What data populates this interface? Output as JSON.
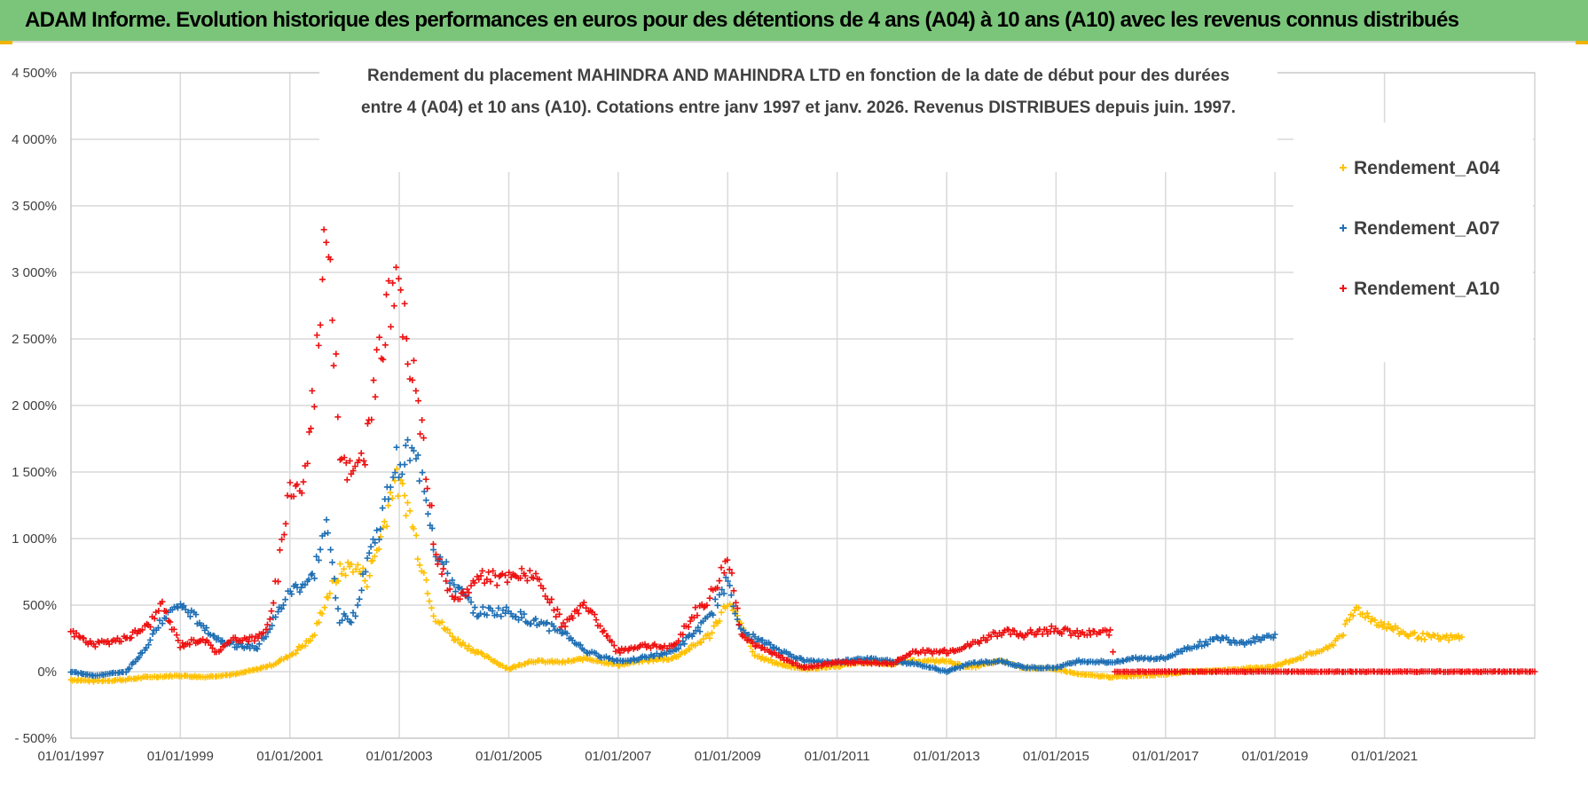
{
  "header": {
    "title": "ADAM Informe. Evolution historique des performances en euros pour des détentions de 4 ans (A04) à 10 ans (A10) avec les revenus connus distribués"
  },
  "colors": {
    "header_bg": "#7ac57a",
    "A04": "#ffc000",
    "A07": "#1f6fb4",
    "A10": "#ee1111",
    "grid": "#d9d9d9"
  },
  "chart_data": {
    "type": "scatter",
    "title_lines": [
      "Rendement du placement MAHINDRA AND MAHINDRA LTD en fonction de la date de début pour des durées",
      "entre 4 (A04) et 10 ans (A10).  Cotations entre janv 1997 et janv. 2026. Revenus DISTRIBUES depuis juin. 1997."
    ],
    "xlabel": "",
    "ylabel": "",
    "ylim": [
      -500,
      4500
    ],
    "xlim": [
      "1997-01-01",
      "2023-10-01"
    ],
    "x_ticks": [
      "01/01/1997",
      "01/01/1999",
      "01/01/2001",
      "01/01/2003",
      "01/01/2005",
      "01/01/2007",
      "01/01/2009",
      "01/01/2011",
      "01/01/2013",
      "01/01/2015",
      "01/01/2017",
      "01/01/2019",
      "01/01/2021"
    ],
    "y_ticks": [
      "- 500%",
      "0%",
      "500%",
      "1 000%",
      "1 500%",
      "2 000%",
      "2 500%",
      "3 000%",
      "3 500%",
      "4 000%",
      "4 500%"
    ],
    "grid": true,
    "legend_position": "right",
    "marker": "+",
    "series": [
      {
        "name": "Rendement_A04",
        "color": "#ffc000",
        "points": [
          [
            "1997-01-01",
            -60
          ],
          [
            "1997-06-01",
            -70
          ],
          [
            "1998-01-01",
            -60
          ],
          [
            "1998-06-01",
            -40
          ],
          [
            "1999-01-01",
            -30
          ],
          [
            "1999-06-01",
            -40
          ],
          [
            "2000-01-01",
            -20
          ],
          [
            "2000-06-01",
            20
          ],
          [
            "2000-09-01",
            50
          ],
          [
            "2001-01-01",
            120
          ],
          [
            "2001-06-01",
            250
          ],
          [
            "2001-09-01",
            550
          ],
          [
            "2001-12-01",
            750
          ],
          [
            "2002-03-01",
            800
          ],
          [
            "2002-06-01",
            700
          ],
          [
            "2002-09-01",
            1000
          ],
          [
            "2002-12-01",
            1450
          ],
          [
            "2003-03-01",
            1250
          ],
          [
            "2003-06-01",
            800
          ],
          [
            "2003-09-01",
            400
          ],
          [
            "2004-01-01",
            250
          ],
          [
            "2004-06-01",
            150
          ],
          [
            "2005-01-01",
            20
          ],
          [
            "2005-06-01",
            80
          ],
          [
            "2006-01-01",
            70
          ],
          [
            "2006-06-01",
            100
          ],
          [
            "2007-01-01",
            50
          ],
          [
            "2007-06-01",
            80
          ],
          [
            "2008-01-01",
            100
          ],
          [
            "2008-06-01",
            200
          ],
          [
            "2008-09-01",
            280
          ],
          [
            "2009-01-01",
            520
          ],
          [
            "2009-04-01",
            350
          ],
          [
            "2009-07-01",
            120
          ],
          [
            "2010-01-01",
            50
          ],
          [
            "2010-06-01",
            20
          ],
          [
            "2011-01-01",
            40
          ],
          [
            "2011-06-01",
            70
          ],
          [
            "2012-01-01",
            60
          ],
          [
            "2012-06-01",
            80
          ],
          [
            "2013-01-01",
            80
          ],
          [
            "2013-06-01",
            30
          ],
          [
            "2014-01-01",
            80
          ],
          [
            "2014-06-01",
            30
          ],
          [
            "2015-01-01",
            20
          ],
          [
            "2015-06-01",
            -20
          ],
          [
            "2016-01-01",
            -40
          ],
          [
            "2016-06-01",
            -30
          ],
          [
            "2017-01-01",
            -20
          ],
          [
            "2017-06-01",
            0
          ],
          [
            "2018-01-01",
            10
          ],
          [
            "2018-06-01",
            20
          ],
          [
            "2019-01-01",
            40
          ],
          [
            "2019-06-01",
            100
          ],
          [
            "2020-01-01",
            180
          ],
          [
            "2020-04-01",
            300
          ],
          [
            "2020-07-01",
            480
          ],
          [
            "2020-10-01",
            400
          ],
          [
            "2021-01-01",
            350
          ],
          [
            "2021-06-01",
            280
          ],
          [
            "2022-01-01",
            250
          ],
          [
            "2022-06-01",
            260
          ]
        ]
      },
      {
        "name": "Rendement_A07",
        "color": "#1f6fb4",
        "points": [
          [
            "1997-01-01",
            0
          ],
          [
            "1997-06-01",
            -30
          ],
          [
            "1998-01-01",
            0
          ],
          [
            "1998-06-01",
            200
          ],
          [
            "1998-09-01",
            400
          ],
          [
            "1999-01-01",
            500
          ],
          [
            "1999-06-01",
            350
          ],
          [
            "1999-09-01",
            250
          ],
          [
            "2000-01-01",
            200
          ],
          [
            "2000-06-01",
            180
          ],
          [
            "2000-09-01",
            350
          ],
          [
            "2001-01-01",
            600
          ],
          [
            "2001-06-01",
            700
          ],
          [
            "2001-09-01",
            1100
          ],
          [
            "2001-12-01",
            400
          ],
          [
            "2002-03-01",
            400
          ],
          [
            "2002-06-01",
            850
          ],
          [
            "2002-09-01",
            1100
          ],
          [
            "2002-12-01",
            1550
          ],
          [
            "2003-03-01",
            1650
          ],
          [
            "2003-06-01",
            1500
          ],
          [
            "2003-09-01",
            900
          ],
          [
            "2004-01-01",
            650
          ],
          [
            "2004-06-01",
            450
          ],
          [
            "2005-01-01",
            450
          ],
          [
            "2005-06-01",
            380
          ],
          [
            "2006-01-01",
            300
          ],
          [
            "2006-06-01",
            150
          ],
          [
            "2007-01-01",
            80
          ],
          [
            "2007-06-01",
            100
          ],
          [
            "2008-01-01",
            150
          ],
          [
            "2008-06-01",
            300
          ],
          [
            "2008-09-01",
            400
          ],
          [
            "2009-01-01",
            700
          ],
          [
            "2009-04-01",
            300
          ],
          [
            "2009-07-01",
            250
          ],
          [
            "2010-01-01",
            150
          ],
          [
            "2010-06-01",
            80
          ],
          [
            "2011-01-01",
            70
          ],
          [
            "2011-06-01",
            100
          ],
          [
            "2012-01-01",
            80
          ],
          [
            "2012-06-01",
            60
          ],
          [
            "2013-01-01",
            0
          ],
          [
            "2013-06-01",
            60
          ],
          [
            "2014-01-01",
            80
          ],
          [
            "2014-06-01",
            30
          ],
          [
            "2015-01-01",
            30
          ],
          [
            "2015-06-01",
            80
          ],
          [
            "2016-01-01",
            70
          ],
          [
            "2016-06-01",
            100
          ],
          [
            "2017-01-01",
            100
          ],
          [
            "2017-06-01",
            180
          ],
          [
            "2018-01-01",
            250
          ],
          [
            "2018-06-01",
            220
          ],
          [
            "2019-01-01",
            280
          ]
        ]
      },
      {
        "name": "Rendement_A10",
        "color": "#ee1111",
        "points": [
          [
            "1997-01-01",
            300
          ],
          [
            "1997-06-01",
            200
          ],
          [
            "1998-01-01",
            250
          ],
          [
            "1998-06-01",
            350
          ],
          [
            "1998-09-01",
            500
          ],
          [
            "1999-01-01",
            200
          ],
          [
            "1999-06-01",
            250
          ],
          [
            "1999-09-01",
            150
          ],
          [
            "2000-01-01",
            250
          ],
          [
            "2000-06-01",
            250
          ],
          [
            "2000-09-01",
            400
          ],
          [
            "2001-01-01",
            1400
          ],
          [
            "2001-04-01",
            1400
          ],
          [
            "2001-06-01",
            2000
          ],
          [
            "2001-09-01",
            3400
          ],
          [
            "2001-12-01",
            1700
          ],
          [
            "2002-03-01",
            1450
          ],
          [
            "2002-06-01",
            1700
          ],
          [
            "2002-09-01",
            2500
          ],
          [
            "2002-12-01",
            2900
          ],
          [
            "2003-03-01",
            2450
          ],
          [
            "2003-06-01",
            1800
          ],
          [
            "2003-09-01",
            900
          ],
          [
            "2004-01-01",
            500
          ],
          [
            "2004-06-01",
            700
          ],
          [
            "2005-01-01",
            700
          ],
          [
            "2005-06-01",
            750
          ],
          [
            "2006-01-01",
            350
          ],
          [
            "2006-06-01",
            500
          ],
          [
            "2007-01-01",
            150
          ],
          [
            "2007-06-01",
            200
          ],
          [
            "2008-01-01",
            180
          ],
          [
            "2008-06-01",
            450
          ],
          [
            "2008-09-01",
            550
          ],
          [
            "2009-01-01",
            850
          ],
          [
            "2009-04-01",
            300
          ],
          [
            "2009-07-01",
            200
          ],
          [
            "2010-01-01",
            100
          ],
          [
            "2010-06-01",
            30
          ],
          [
            "2011-01-01",
            70
          ],
          [
            "2011-06-01",
            70
          ],
          [
            "2012-01-01",
            60
          ],
          [
            "2012-06-01",
            150
          ],
          [
            "2013-01-01",
            150
          ],
          [
            "2013-06-01",
            200
          ],
          [
            "2014-01-01",
            300
          ],
          [
            "2014-06-01",
            280
          ],
          [
            "2015-01-01",
            320
          ],
          [
            "2015-06-01",
            280
          ],
          [
            "2016-01-01",
            300
          ],
          [
            "2016-02-01",
            0
          ],
          [
            "2023-10-01",
            0
          ]
        ]
      }
    ]
  }
}
